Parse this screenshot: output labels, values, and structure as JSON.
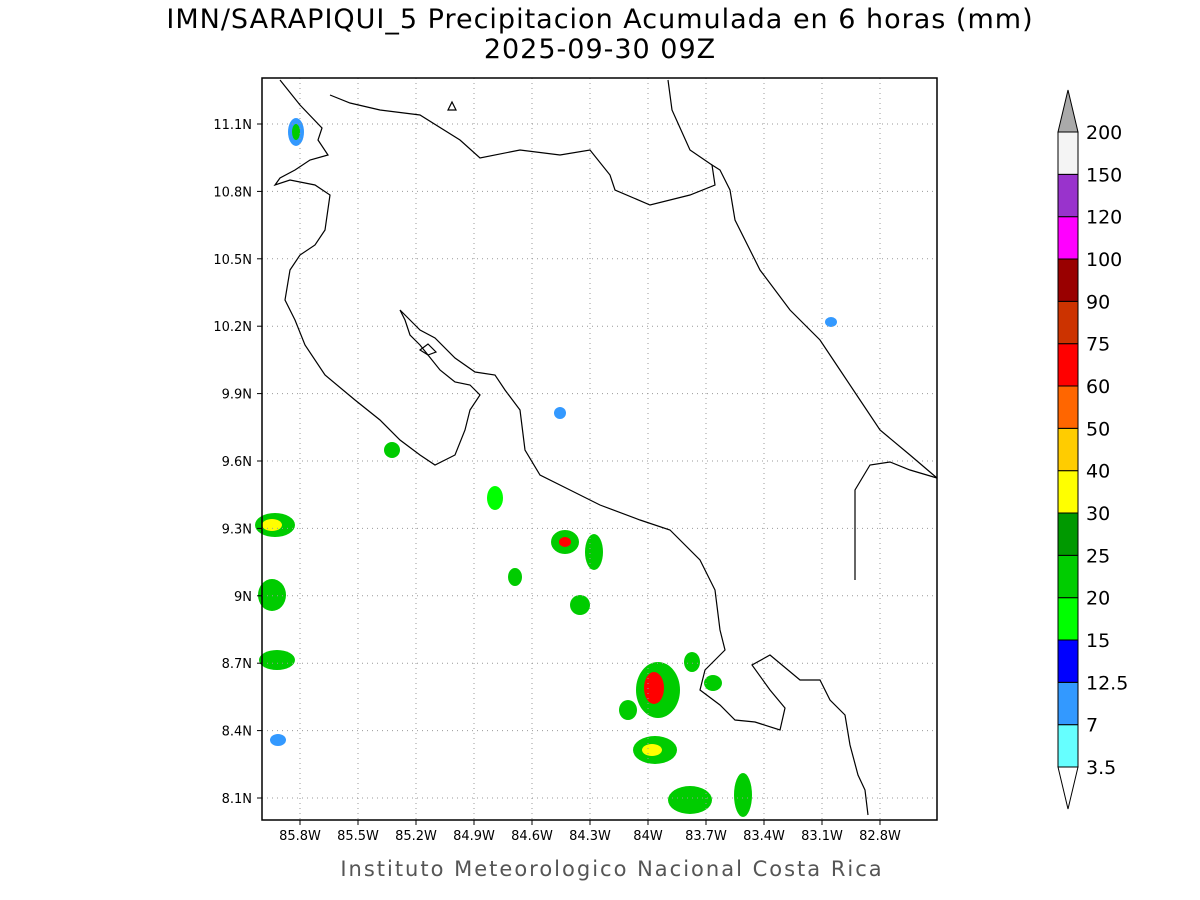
{
  "title": "IMN/SARAPIQUI_5 Precipitacion Acumulada en 6 horas (mm)",
  "subtitle": "2025-09-30 09Z",
  "latitude_labels": [
    "11.1N",
    "10.8N",
    "10.5N",
    "10.2N",
    "9.9N",
    "9.6N",
    "9.3N",
    "9N",
    "8.7N",
    "8.4N",
    "8.1N"
  ],
  "longitude_labels": [
    "85.8W",
    "85.5W",
    "85.2W",
    "84.9W",
    "84.6W",
    "84.3W",
    "84W",
    "83.7W",
    "83.4W",
    "83.1W",
    "82.8W"
  ],
  "colorbar": {
    "levels": [
      3.5,
      7,
      12.5,
      15,
      20,
      25,
      30,
      40,
      50,
      60,
      75,
      90,
      100,
      120,
      150,
      200
    ],
    "colors": [
      "#66ffff",
      "#3399ff",
      "#0000ff",
      "#00ff00",
      "#00cc00",
      "#009900",
      "#ffff00",
      "#ffcc00",
      "#ff6600",
      "#ff0000",
      "#cc3300",
      "#990000",
      "#ff00ff",
      "#9933cc",
      "#f4f4f4"
    ],
    "below_color": "#ffffff",
    "above_color": "#aaaaaa"
  },
  "footer": "Instituto Meteorologico Nacional Costa Rica"
}
